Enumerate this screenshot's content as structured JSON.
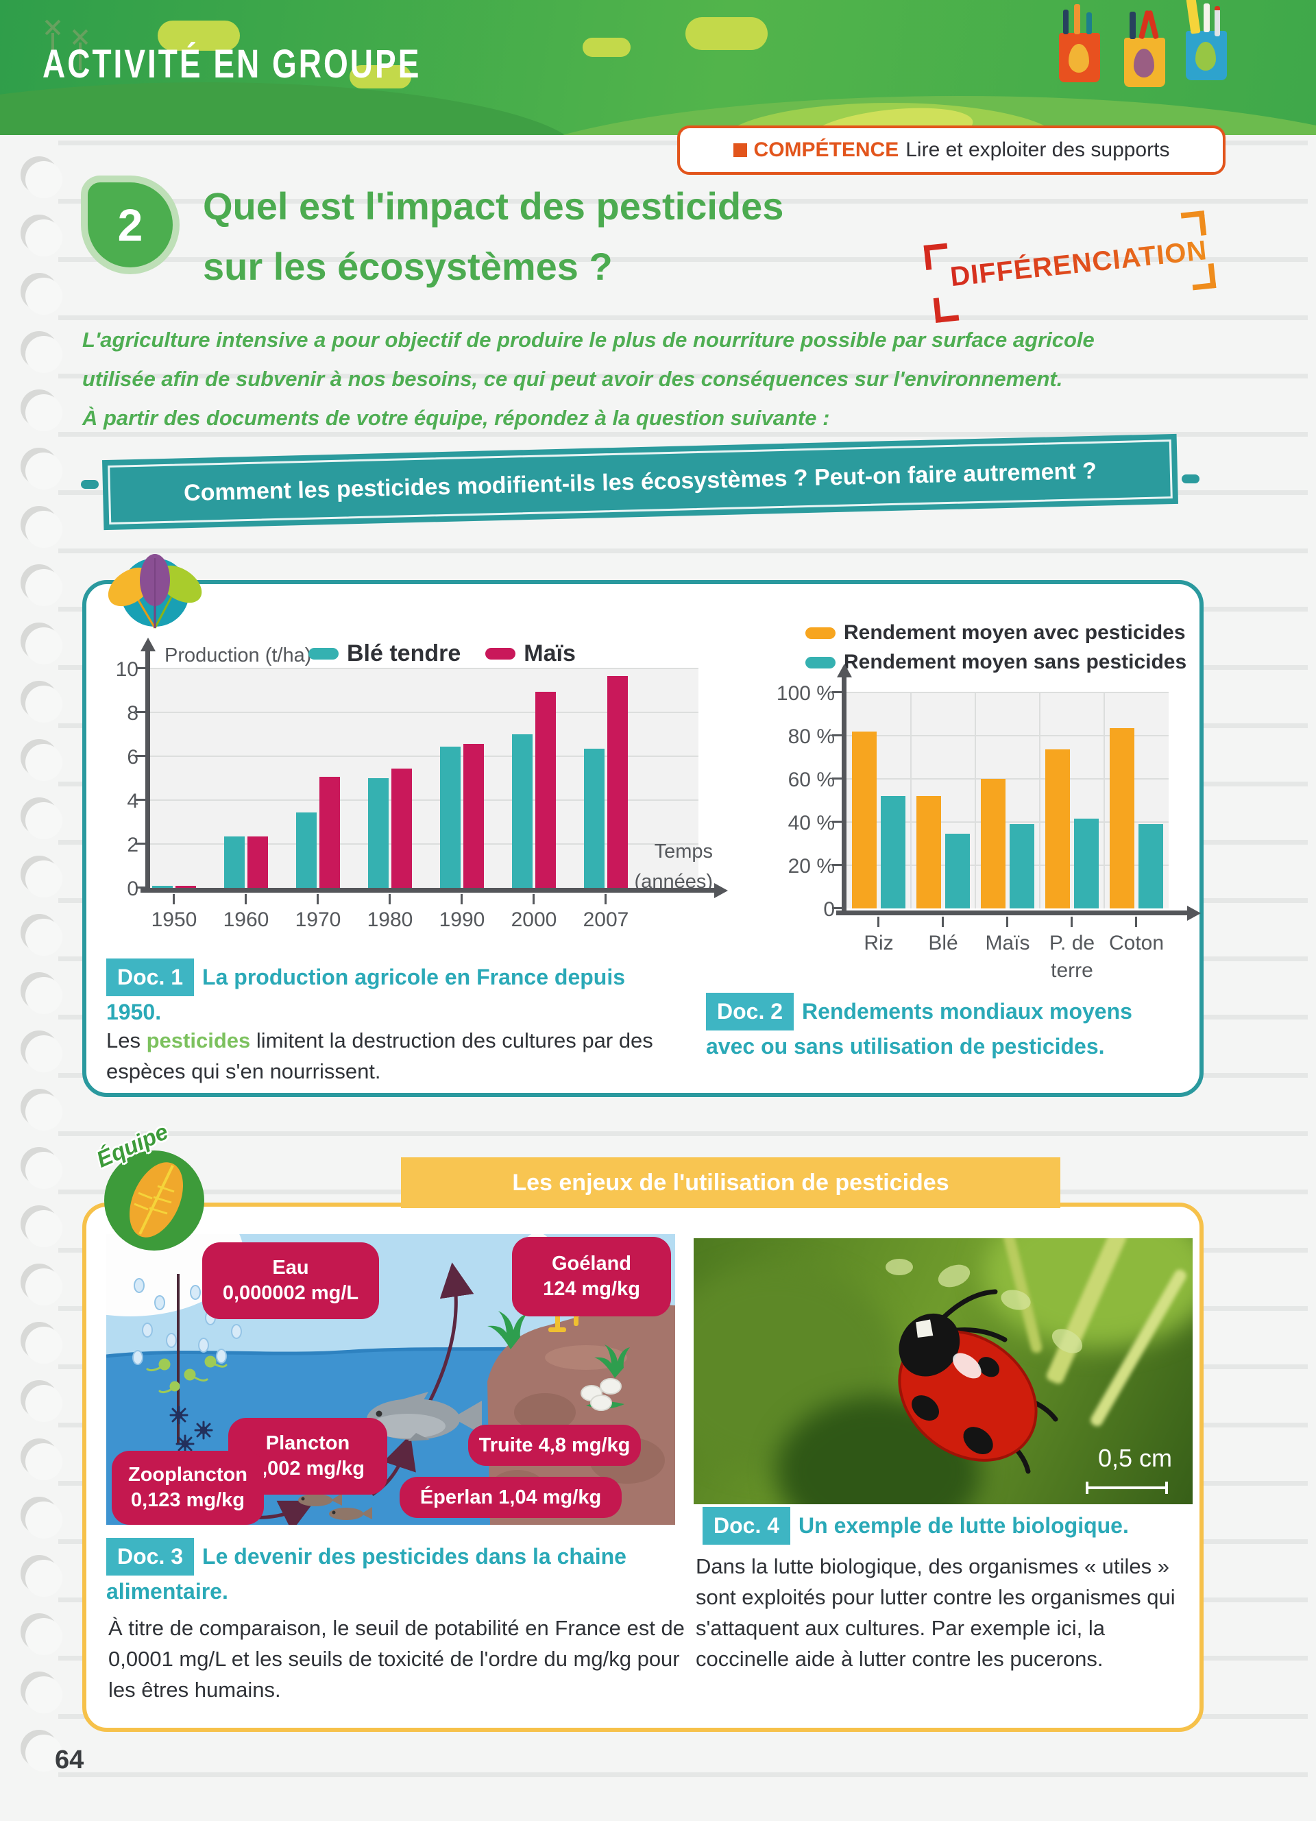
{
  "page": {
    "number": "64",
    "accent_teal": "#2a9a9e",
    "accent_crimson": "#c4184f",
    "accent_orange": "#f7a51f",
    "accent_green": "#4cab50"
  },
  "header": {
    "banner_title": "ACTIVITÉ EN GROUPE",
    "competence_label": "COMPÉTENCE",
    "competence_text": "Lire et exploiter des supports",
    "differenciation_stamp": "DIFFÉRENCIATION"
  },
  "activity": {
    "number": "2",
    "title_line1": "Quel est l'impact des pesticides",
    "title_line2": "sur les écosystèmes ?",
    "intro_lines": [
      "L'agriculture intensive a pour objectif de produire le plus de nourriture possible par surface agricole",
      "utilisée afin de subvenir à nos besoins, ce qui peut avoir des conséquences sur l'environnement.",
      "À partir des documents de votre équipe, répondez à la question suivante :"
    ],
    "question_banner": "Comment les pesticides modifient-ils les écosystèmes ? Peut-on faire autrement ?",
    "team_badge": "Équipe",
    "section_banner": "Les enjeux de l'utilisation de pesticides"
  },
  "doc1": {
    "badge": "Doc. 1",
    "caption": "La production agricole en France depuis 1950.",
    "body_prefix": "Les ",
    "body_highlight": "pesticides",
    "body_suffix": " limitent la destruction des cultures par des espèces qui s'en nourrissent."
  },
  "doc2": {
    "badge": "Doc. 2",
    "caption": "Rendements mondiaux moyens avec ou sans utilisation de pesticides."
  },
  "doc3": {
    "badge": "Doc. 3",
    "caption": "Le devenir des pesticides dans la chaine alimentaire.",
    "body": "À titre de comparaison, le seuil de potabilité en France est de 0,0001 mg/L et les seuils de toxicité de l'ordre du mg/kg pour les êtres humains.",
    "labels": [
      {
        "lines": [
          "Eau",
          "0,000002 mg/L"
        ]
      },
      {
        "lines": [
          "Goéland",
          "124 mg/kg"
        ]
      },
      {
        "lines": [
          "Plancton",
          "0,002 mg/kg"
        ]
      },
      {
        "lines": [
          "Truite 4,8 mg/kg"
        ]
      },
      {
        "lines": [
          "Zooplancton",
          "0,123 mg/kg"
        ]
      },
      {
        "lines": [
          "Éperlan 1,04 mg/kg"
        ]
      }
    ]
  },
  "doc4": {
    "badge": "Doc. 4",
    "caption": "Un exemple de lutte biologique.",
    "body": "Dans la lutte biologique, des organismes « utiles » sont exploités pour lutter contre les organismes qui s'attaquent aux cultures. Par exemple ici, la coccinelle aide à lutter contre les pucerons.",
    "scale_label": "0,5 cm"
  },
  "chart_data": [
    {
      "type": "bar",
      "title": "La production agricole en France depuis 1950",
      "ylabel": "Production (t/ha)",
      "xlabel_lines": [
        "Temps",
        "(années)"
      ],
      "categories": [
        "1950",
        "1960",
        "1970",
        "1980",
        "1990",
        "2000",
        "2007"
      ],
      "series": [
        {
          "name": "Blé tendre",
          "color": "#35b1b1",
          "values": [
            0.1,
            2.35,
            3.45,
            5.0,
            6.45,
            7.0,
            6.35
          ]
        },
        {
          "name": "Maïs",
          "color": "#c9185a",
          "values": [
            0.1,
            2.35,
            5.05,
            5.45,
            6.55,
            8.95,
            9.65
          ]
        }
      ],
      "ylim": [
        0,
        10
      ],
      "yticks": [
        0,
        2,
        4,
        6,
        8,
        10
      ],
      "ytick_labels": [
        "0",
        "2",
        "4",
        "6",
        "8",
        "10"
      ],
      "grid": "horizontal",
      "legend_position": "top"
    },
    {
      "type": "bar",
      "title": "Rendements mondiaux moyens avec ou sans utilisation de pesticides",
      "ylabel": "",
      "xlabel_lines": [],
      "categories": [
        "Riz",
        "Blé",
        "Maïs",
        "P. de terre",
        "Coton"
      ],
      "series": [
        {
          "name": "Rendement moyen avec pesticides",
          "color": "#f7a51f",
          "values": [
            82,
            52,
            60,
            73.5,
            83.5
          ]
        },
        {
          "name": "Rendement moyen sans pesticides",
          "color": "#35b1b1",
          "values": [
            52,
            34.5,
            39,
            41.5,
            39
          ]
        }
      ],
      "ylim": [
        0,
        100
      ],
      "yticks": [
        0,
        20,
        40,
        60,
        80,
        100
      ],
      "ytick_labels": [
        "0",
        "20 %",
        "40 %",
        "60 %",
        "80 %",
        "100 %"
      ],
      "grid": "both",
      "legend_position": "top"
    }
  ]
}
